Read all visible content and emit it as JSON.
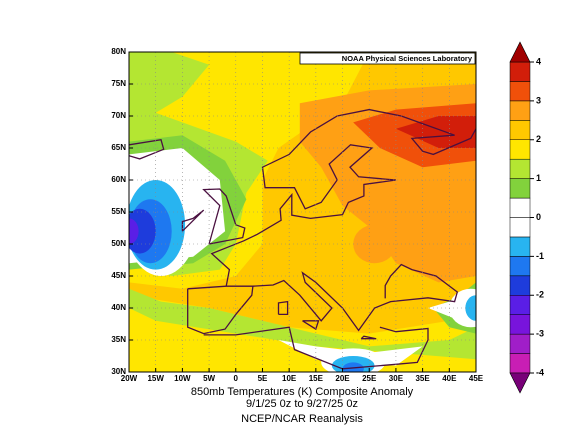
{
  "chart_data": {
    "type": "map",
    "credit": "NOAA Physical Sciences Laboratory",
    "caption": [
      "850mb Temperatures (K)  Composite Anomaly",
      "9/1/25 0z  to 9/27/25 0z",
      "NCEP/NCAR Reanalysis"
    ],
    "xlim": [
      -20,
      45
    ],
    "xticks": [
      {
        "value": -20,
        "label": "20W"
      },
      {
        "value": -15,
        "label": "15W"
      },
      {
        "value": -10,
        "label": "10W"
      },
      {
        "value": -5,
        "label": "5W"
      },
      0,
      {
        "value": 5,
        "label": "5E"
      },
      {
        "value": 10,
        "label": "10E"
      },
      {
        "value": 15,
        "label": "15E"
      },
      {
        "value": 20,
        "label": "20E"
      },
      {
        "value": 25,
        "label": "25E"
      },
      {
        "value": 30,
        "label": "30E"
      },
      {
        "value": 35,
        "label": "35E"
      },
      {
        "value": 40,
        "label": "40E"
      },
      {
        "value": 45,
        "label": "45E"
      }
    ],
    "ylim": [
      30,
      80
    ],
    "yticks": [
      {
        "value": 30,
        "label": "30N"
      },
      {
        "value": 35,
        "label": "35N"
      },
      {
        "value": 40,
        "label": "40N"
      },
      {
        "value": 45,
        "label": "45N"
      },
      {
        "value": 50,
        "label": "50N"
      },
      {
        "value": 55,
        "label": "55N"
      },
      {
        "value": 60,
        "label": "60N"
      },
      {
        "value": 65,
        "label": "65N"
      },
      {
        "value": 70,
        "label": "70N"
      },
      {
        "value": 75,
        "label": "75N"
      },
      {
        "value": 80,
        "label": "80N"
      }
    ],
    "grid": true,
    "colorbar": {
      "lim": [
        -4,
        4
      ],
      "ticks": [
        -4,
        -3,
        -2,
        -1,
        0,
        1,
        2,
        3,
        4
      ],
      "bounds": [
        -4,
        -3.5,
        -3,
        -2.5,
        -2,
        -1.5,
        -1,
        -0.5,
        0,
        0.5,
        1,
        1.5,
        2,
        2.5,
        3,
        3.5,
        4
      ],
      "colors": [
        "#c81eb4",
        "#a01ec8",
        "#7814dc",
        "#5a1ee6",
        "#1e3cdc",
        "#1e78f0",
        "#28b4f0",
        "#ffffff",
        "#ffffff",
        "#82d23c",
        "#b4e632",
        "#ffe600",
        "#ffc800",
        "#ffa014",
        "#f0500a",
        "#d21e0a"
      ],
      "under_color": "#780078",
      "over_color": "#a00000"
    }
  }
}
